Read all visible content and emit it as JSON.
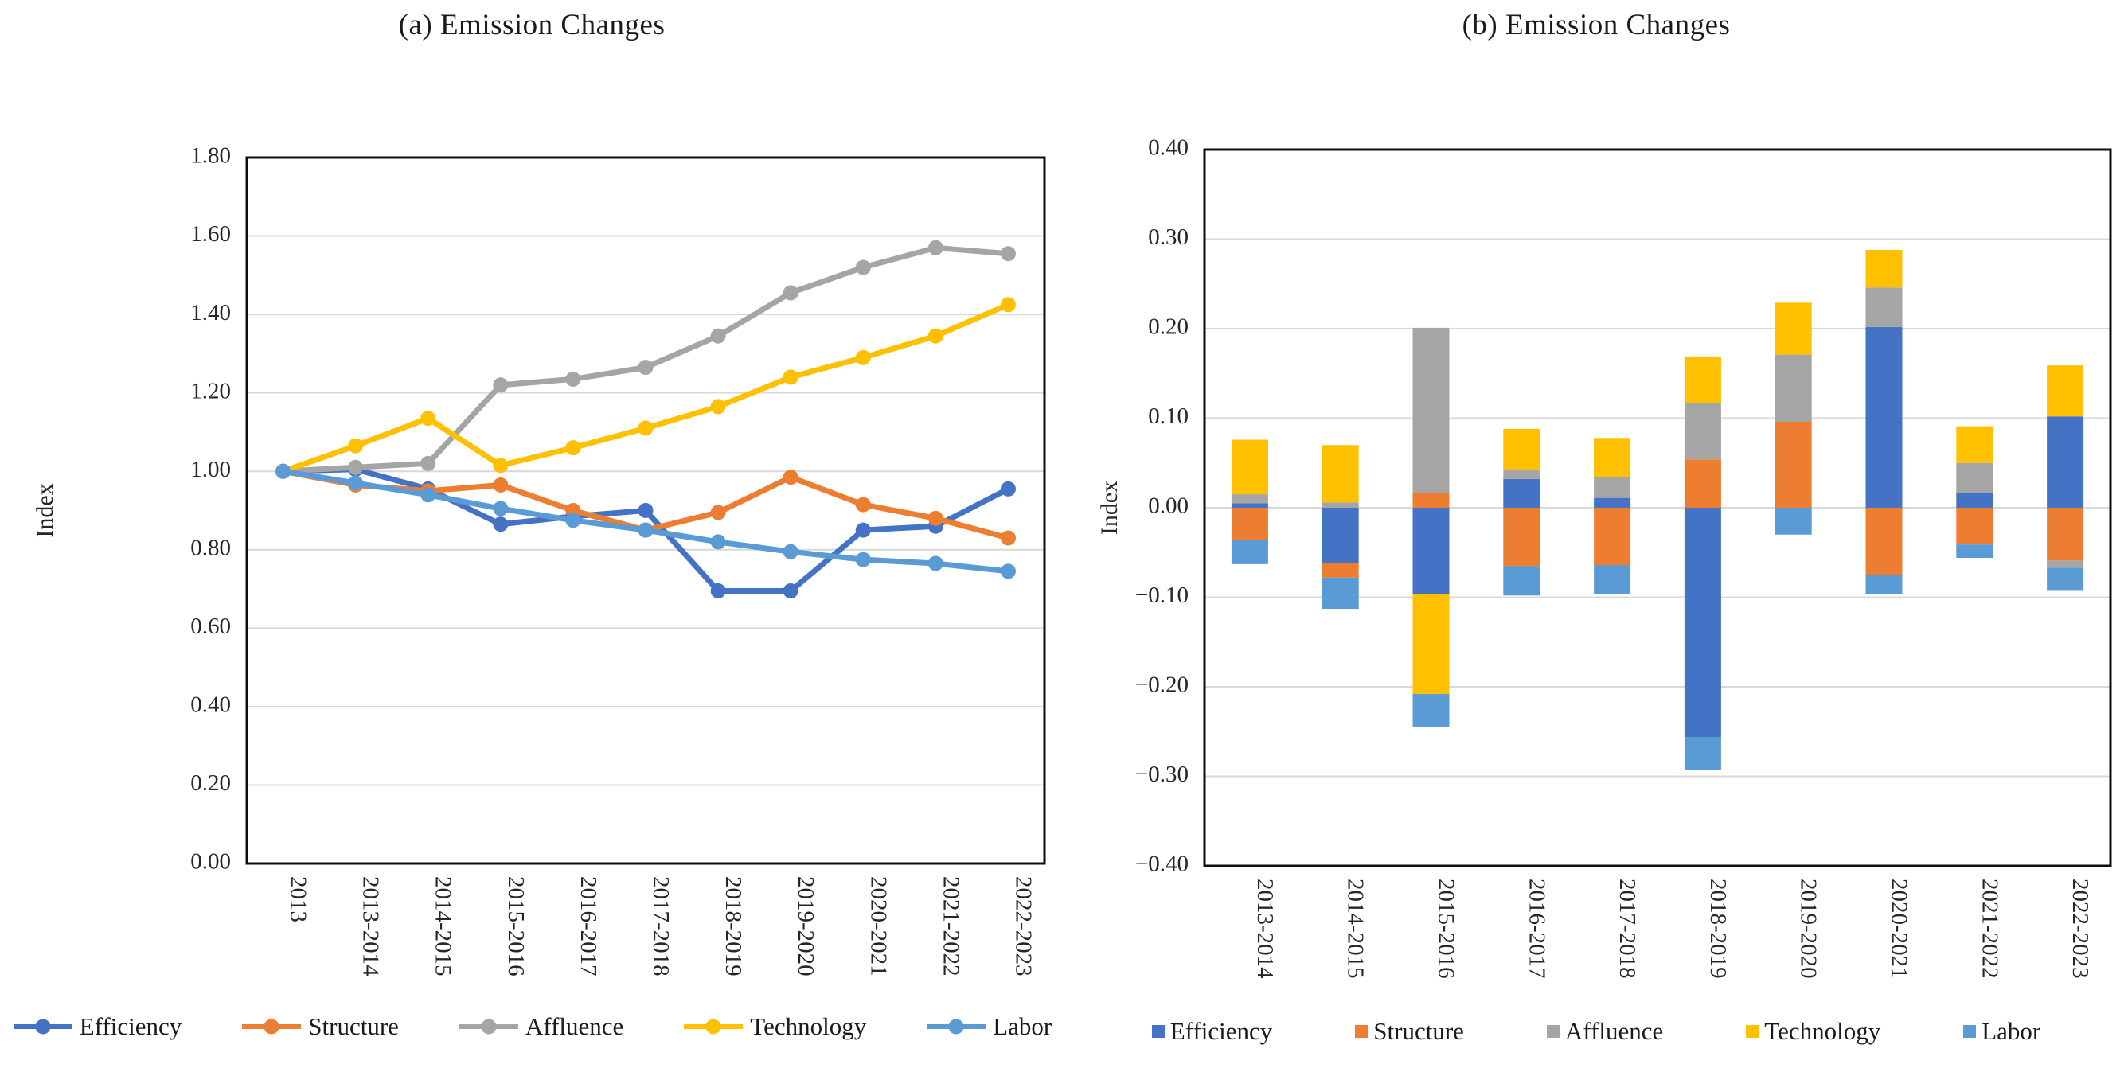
{
  "figure": {
    "background": "#ffffff",
    "text_color": "#1a1a1a",
    "gridline_color": "#d9d9d9",
    "axis_color": "#0d0d0d"
  },
  "chart_data": [
    {
      "type": "line",
      "title": "(a) Emission Changes",
      "ylabel": "Index",
      "xlabel": "",
      "ylim": [
        0.0,
        1.8
      ],
      "ystep": 0.2,
      "grid": true,
      "legend_position": "bottom",
      "marker": "circle",
      "categories": [
        "2013",
        "2013-2014",
        "2014-2015",
        "2015-2016",
        "2016-2017",
        "2017-2018",
        "2018-2019",
        "2019-2020",
        "2020-2021",
        "2021-2022",
        "2022-2023"
      ],
      "series": [
        {
          "name": "Efficiency",
          "color": "#4472C4",
          "values": [
            1.0,
            1.005,
            0.955,
            0.865,
            0.885,
            0.9,
            0.695,
            0.695,
            0.85,
            0.86,
            0.955
          ]
        },
        {
          "name": "Structure",
          "color": "#ED7D31",
          "values": [
            1.0,
            0.965,
            0.95,
            0.965,
            0.9,
            0.85,
            0.895,
            0.985,
            0.915,
            0.88,
            0.83
          ]
        },
        {
          "name": "Affluence",
          "color": "#A5A5A5",
          "values": [
            1.0,
            1.01,
            1.02,
            1.22,
            1.235,
            1.265,
            1.345,
            1.455,
            1.52,
            1.57,
            1.555
          ]
        },
        {
          "name": "Technology",
          "color": "#FFC000",
          "values": [
            1.0,
            1.065,
            1.135,
            1.015,
            1.06,
            1.11,
            1.165,
            1.24,
            1.29,
            1.345,
            1.425
          ]
        },
        {
          "name": "Labor",
          "color": "#5B9BD5",
          "values": [
            1.0,
            0.97,
            0.94,
            0.905,
            0.875,
            0.85,
            0.82,
            0.795,
            0.775,
            0.765,
            0.745
          ]
        }
      ]
    },
    {
      "type": "bar",
      "stacked": true,
      "title": "(b) Emission Changes",
      "ylabel": "Index",
      "xlabel": "",
      "ylim": [
        -0.4,
        0.4
      ],
      "ystep": 0.1,
      "grid": true,
      "legend_position": "bottom",
      "categories": [
        "2013-2014",
        "2014-2015",
        "2015-2016",
        "2016-2017",
        "2017-2018",
        "2018-2019",
        "2019-2020",
        "2020-2021",
        "2021-2022",
        "2022-2023"
      ],
      "series": [
        {
          "name": "Efficiency",
          "color": "#4472C4",
          "values": [
            0.005,
            -0.062,
            -0.096,
            0.032,
            0.011,
            -0.256,
            0.0,
            0.202,
            0.016,
            0.102
          ]
        },
        {
          "name": "Structure",
          "color": "#ED7D31",
          "values": [
            -0.036,
            -0.016,
            0.016,
            -0.065,
            -0.064,
            0.054,
            0.096,
            -0.075,
            -0.041,
            -0.059
          ]
        },
        {
          "name": "Affluence",
          "color": "#A5A5A5",
          "values": [
            0.01,
            0.006,
            0.185,
            0.011,
            0.023,
            0.063,
            0.075,
            0.044,
            0.034,
            -0.008
          ]
        },
        {
          "name": "Technology",
          "color": "#FFC000",
          "values": [
            0.061,
            0.064,
            -0.112,
            0.045,
            0.044,
            0.052,
            0.058,
            0.042,
            0.041,
            0.057
          ]
        },
        {
          "name": "Labor",
          "color": "#5B9BD5",
          "values": [
            -0.027,
            -0.035,
            -0.037,
            -0.033,
            -0.032,
            -0.037,
            -0.03,
            -0.021,
            -0.015,
            -0.025
          ]
        }
      ]
    }
  ]
}
